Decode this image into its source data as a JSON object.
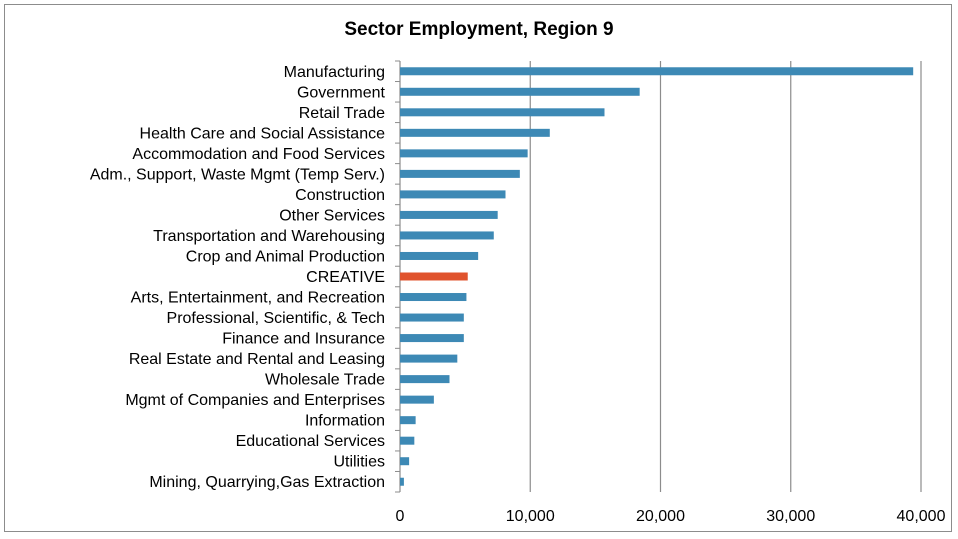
{
  "chart_data": {
    "type": "bar",
    "orientation": "horizontal",
    "title": "Sector Employment, Region 9",
    "xlabel": "",
    "ylabel": "",
    "xlim": [
      0,
      40000
    ],
    "x_ticks": [
      0,
      10000,
      20000,
      30000,
      40000
    ],
    "x_tick_labels": [
      "0",
      "10,000",
      "20,000",
      "30,000",
      "40,000"
    ],
    "grid": "vertical",
    "legend": "none",
    "colors": {
      "default": "#3d89b5",
      "highlight": "#e0532d",
      "grid": "#8c8c8c"
    },
    "highlight_category": "CREATIVE",
    "categories": [
      "Manufacturing",
      "Government",
      "Retail Trade",
      "Health Care and Social Assistance",
      "Accommodation and Food Services",
      "Adm., Support, Waste Mgmt (Temp Serv.)",
      "Construction",
      "Other Services",
      "Transportation and Warehousing",
      "Crop and Animal Production",
      "CREATIVE",
      "Arts, Entertainment, and Recreation",
      "Professional, Scientific, & Tech",
      "Finance and Insurance",
      "Real Estate and Rental and Leasing",
      "Wholesale Trade",
      "Mgmt of Companies and Enterprises",
      "Information",
      "Educational Services",
      "Utilities",
      "Mining, Quarrying,Gas Extraction"
    ],
    "values": [
      39400,
      18400,
      15700,
      11500,
      9800,
      9200,
      8100,
      7500,
      7200,
      6000,
      5200,
      5100,
      4900,
      4900,
      4400,
      3800,
      2600,
      1200,
      1100,
      700,
      300
    ]
  }
}
